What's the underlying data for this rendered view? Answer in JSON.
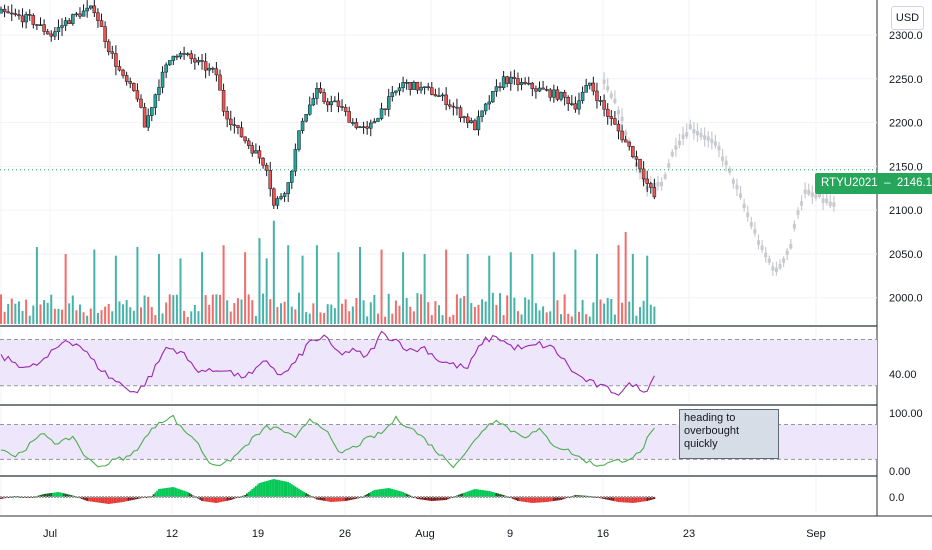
{
  "toolbar": {
    "currency_label": "USD"
  },
  "price_tag": {
    "symbol": "RTYU2021",
    "price": "2146.1"
  },
  "annotation": {
    "lines": [
      "heading to",
      "overbought",
      "quickly"
    ]
  },
  "colors": {
    "up": "#26a69a",
    "down": "#ef5350",
    "candle": "#131722",
    "forecast": "#c8cacf",
    "rsi": "#9c27b0",
    "stoch": "#4caf50",
    "band": "#eee6fb",
    "tag": "#26a65b"
  },
  "chart_data": [
    {
      "type": "candlestick",
      "title": "",
      "ylim": [
        1970,
        2340
      ],
      "y_ticks": [
        "2300.0",
        "2250.0",
        "2200.0",
        "2150.0",
        "2100.0",
        "2050.0",
        "2000.0"
      ],
      "x_ticks": [
        "Jul",
        "12",
        "19",
        "26",
        "Aug",
        "9",
        "16",
        "23",
        "Sep"
      ],
      "last_price": 2146.1,
      "close_path": [
        [
          0,
          2325
        ],
        [
          4,
          2318
        ],
        [
          7,
          2300
        ],
        [
          9,
          2315
        ],
        [
          11,
          2325
        ],
        [
          13,
          2330
        ],
        [
          15,
          2285
        ],
        [
          17,
          2250
        ],
        [
          19,
          2230
        ],
        [
          20,
          2195
        ],
        [
          22,
          2245
        ],
        [
          24,
          2280
        ],
        [
          26,
          2275
        ],
        [
          28,
          2265
        ],
        [
          30,
          2255
        ],
        [
          31,
          2215
        ],
        [
          33,
          2190
        ],
        [
          35,
          2170
        ],
        [
          37,
          2150
        ],
        [
          38,
          2105
        ],
        [
          40,
          2130
        ],
        [
          42,
          2205
        ],
        [
          44,
          2235
        ],
        [
          45,
          2225
        ],
        [
          47,
          2220
        ],
        [
          49,
          2200
        ],
        [
          51,
          2190
        ],
        [
          53,
          2215
        ],
        [
          56,
          2245
        ],
        [
          58,
          2240
        ],
        [
          60,
          2235
        ],
        [
          62,
          2225
        ],
        [
          64,
          2210
        ],
        [
          66,
          2195
        ],
        [
          68,
          2225
        ],
        [
          70,
          2250
        ],
        [
          72,
          2245
        ],
        [
          74,
          2240
        ],
        [
          76,
          2235
        ],
        [
          78,
          2230
        ],
        [
          80,
          2220
        ],
        [
          82,
          2245
        ],
        [
          84,
          2215
        ],
        [
          86,
          2190
        ],
        [
          88,
          2165
        ],
        [
          89,
          2150
        ],
        [
          90,
          2130
        ],
        [
          91,
          2115
        ]
      ],
      "forecast_path": [
        [
          84,
          2245
        ],
        [
          86,
          2215
        ],
        [
          88,
          2165
        ],
        [
          90,
          2125
        ],
        [
          92,
          2130
        ],
        [
          94,
          2175
        ],
        [
          96,
          2195
        ],
        [
          98,
          2185
        ],
        [
          100,
          2170
        ],
        [
          102,
          2135
        ],
        [
          104,
          2095
        ],
        [
          106,
          2055
        ],
        [
          108,
          2030
        ],
        [
          110,
          2060
        ],
        [
          111,
          2100
        ],
        [
          112,
          2120
        ],
        [
          114,
          2115
        ],
        [
          116,
          2105
        ]
      ],
      "volume_spikes": [
        [
          5,
          2058
        ],
        [
          9,
          2050
        ],
        [
          13,
          2055
        ],
        [
          16,
          2048
        ],
        [
          19,
          2058
        ],
        [
          22,
          2050
        ],
        [
          25,
          2045
        ],
        [
          28,
          2052
        ],
        [
          31,
          2060
        ],
        [
          34,
          2052
        ],
        [
          36,
          2068
        ],
        [
          37,
          2045
        ],
        [
          38,
          2088
        ],
        [
          40,
          2060
        ],
        [
          42,
          2048
        ],
        [
          44,
          2060
        ],
        [
          47,
          2052
        ],
        [
          50,
          2058
        ],
        [
          53,
          2055
        ],
        [
          56,
          2052
        ],
        [
          59,
          2050
        ],
        [
          62,
          2055
        ],
        [
          65,
          2050
        ],
        [
          68,
          2048
        ],
        [
          71,
          2052
        ],
        [
          74,
          2050
        ],
        [
          77,
          2052
        ],
        [
          80,
          2055
        ],
        [
          83,
          2050
        ],
        [
          86,
          2060
        ],
        [
          87,
          2075
        ],
        [
          88,
          2050
        ],
        [
          90,
          2048
        ]
      ]
    },
    {
      "type": "line",
      "title": "",
      "ylim": [
        15,
        80
      ],
      "y_ticks": [
        "40.00"
      ],
      "band": [
        30,
        70
      ],
      "series": [
        {
          "values": [
            [
              0,
              55
            ],
            [
              4,
              45
            ],
            [
              6,
              52
            ],
            [
              9,
              70
            ],
            [
              11,
              65
            ],
            [
              13,
              50
            ],
            [
              15,
              38
            ],
            [
              17,
              30
            ],
            [
              19,
              24
            ],
            [
              21,
              40
            ],
            [
              23,
              63
            ],
            [
              25,
              60
            ],
            [
              27,
              45
            ],
            [
              29,
              42
            ],
            [
              31,
              45
            ],
            [
              33,
              38
            ],
            [
              35,
              40
            ],
            [
              37,
              52
            ],
            [
              39,
              38
            ],
            [
              41,
              50
            ],
            [
              43,
              68
            ],
            [
              45,
              72
            ],
            [
              47,
              58
            ],
            [
              49,
              60
            ],
            [
              51,
              55
            ],
            [
              53,
              75
            ],
            [
              55,
              70
            ],
            [
              57,
              60
            ],
            [
              59,
              63
            ],
            [
              61,
              52
            ],
            [
              63,
              48
            ],
            [
              65,
              45
            ],
            [
              67,
              68
            ],
            [
              69,
              73
            ],
            [
              71,
              64
            ],
            [
              73,
              62
            ],
            [
              75,
              66
            ],
            [
              77,
              62
            ],
            [
              78,
              55
            ],
            [
              80,
              40
            ],
            [
              82,
              33
            ],
            [
              84,
              28
            ],
            [
              86,
              24
            ],
            [
              88,
              32
            ],
            [
              89,
              26
            ],
            [
              90,
              28
            ],
            [
              91,
              38
            ]
          ]
        }
      ]
    },
    {
      "type": "line",
      "title": "",
      "ylim": [
        -5,
        110
      ],
      "y_ticks": [
        "100.00",
        "0.00"
      ],
      "band": [
        20,
        80
      ],
      "series": [
        {
          "values": [
            [
              0,
              40
            ],
            [
              2,
              25
            ],
            [
              4,
              45
            ],
            [
              6,
              65
            ],
            [
              8,
              45
            ],
            [
              10,
              60
            ],
            [
              12,
              20
            ],
            [
              14,
              8
            ],
            [
              16,
              20
            ],
            [
              18,
              25
            ],
            [
              20,
              55
            ],
            [
              22,
              85
            ],
            [
              24,
              93
            ],
            [
              25,
              75
            ],
            [
              27,
              55
            ],
            [
              29,
              15
            ],
            [
              31,
              10
            ],
            [
              33,
              30
            ],
            [
              35,
              55
            ],
            [
              37,
              75
            ],
            [
              39,
              72
            ],
            [
              41,
              55
            ],
            [
              43,
              90
            ],
            [
              45,
              75
            ],
            [
              47,
              30
            ],
            [
              49,
              40
            ],
            [
              51,
              55
            ],
            [
              53,
              65
            ],
            [
              55,
              90
            ],
            [
              57,
              75
            ],
            [
              59,
              55
            ],
            [
              61,
              30
            ],
            [
              63,
              10
            ],
            [
              65,
              35
            ],
            [
              67,
              70
            ],
            [
              69,
              90
            ],
            [
              71,
              70
            ],
            [
              73,
              60
            ],
            [
              75,
              70
            ],
            [
              77,
              45
            ],
            [
              79,
              35
            ],
            [
              81,
              20
            ],
            [
              83,
              10
            ],
            [
              85,
              15
            ],
            [
              87,
              20
            ],
            [
              89,
              30
            ],
            [
              90,
              55
            ],
            [
              91,
              70
            ]
          ]
        }
      ]
    },
    {
      "type": "histogram",
      "title": "",
      "y_ticks": [
        "0.0"
      ],
      "zero_line": 0,
      "series": [
        {
          "values": [
            [
              0,
              -4
            ],
            [
              2,
              2
            ],
            [
              4,
              -2
            ],
            [
              6,
              6
            ],
            [
              8,
              10
            ],
            [
              10,
              3
            ],
            [
              12,
              -8
            ],
            [
              14,
              -12
            ],
            [
              15,
              -14
            ],
            [
              17,
              -10
            ],
            [
              19,
              -4
            ],
            [
              21,
              2
            ],
            [
              22,
              16
            ],
            [
              24,
              20
            ],
            [
              26,
              10
            ],
            [
              28,
              -8
            ],
            [
              30,
              -12
            ],
            [
              32,
              -6
            ],
            [
              34,
              4
            ],
            [
              36,
              28
            ],
            [
              38,
              36
            ],
            [
              40,
              30
            ],
            [
              42,
              12
            ],
            [
              44,
              -5
            ],
            [
              46,
              -10
            ],
            [
              48,
              -8
            ],
            [
              50,
              -2
            ],
            [
              52,
              14
            ],
            [
              54,
              18
            ],
            [
              56,
              10
            ],
            [
              58,
              -4
            ],
            [
              60,
              -8
            ],
            [
              62,
              -6
            ],
            [
              64,
              6
            ],
            [
              66,
              16
            ],
            [
              68,
              12
            ],
            [
              70,
              4
            ],
            [
              72,
              -8
            ],
            [
              74,
              -12
            ],
            [
              76,
              -10
            ],
            [
              78,
              -6
            ],
            [
              80,
              4
            ],
            [
              82,
              2
            ],
            [
              84,
              -4
            ],
            [
              86,
              -10
            ],
            [
              88,
              -12
            ],
            [
              90,
              -8
            ],
            [
              91,
              -4
            ]
          ]
        }
      ]
    }
  ]
}
